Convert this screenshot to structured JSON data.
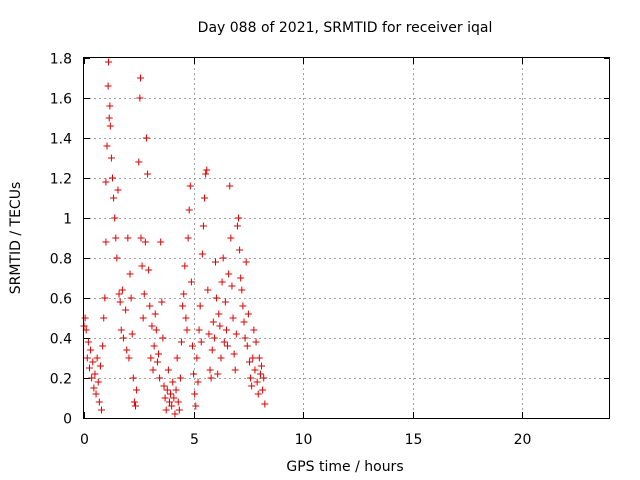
{
  "chart_data": {
    "type": "scatter",
    "title": "Day 088 of 2021, SRMTID for receiver iqal",
    "xlabel": "GPS time / hours",
    "ylabel": "SRMTID / TECUs",
    "xlim": [
      0,
      24
    ],
    "ylim": [
      0,
      1.8
    ],
    "x_ticks": [
      0,
      5,
      10,
      15,
      20
    ],
    "x_tick_labels": [
      "0",
      "5",
      "10",
      "15",
      "20"
    ],
    "y_ticks": [
      0,
      0.2,
      0.4,
      0.6,
      0.8,
      1,
      1.2,
      1.4,
      1.6,
      1.8
    ],
    "y_tick_labels": [
      "0",
      "0.2",
      "0.4",
      "0.6",
      "0.8",
      "1",
      "1.2",
      "1.4",
      "1.6",
      "1.8"
    ],
    "grid": true,
    "marker": "+",
    "series": [
      {
        "name": "SRMTID",
        "color": "#e00000",
        "points": [
          [
            0.0,
            0.46
          ],
          [
            0.05,
            0.5
          ],
          [
            0.1,
            0.44
          ],
          [
            0.15,
            0.3
          ],
          [
            0.2,
            0.38
          ],
          [
            0.25,
            0.25
          ],
          [
            0.3,
            0.34
          ],
          [
            0.35,
            0.2
          ],
          [
            0.4,
            0.28
          ],
          [
            0.45,
            0.15
          ],
          [
            0.5,
            0.22
          ],
          [
            0.55,
            0.12
          ],
          [
            0.6,
            0.3
          ],
          [
            0.65,
            0.18
          ],
          [
            0.7,
            0.08
          ],
          [
            0.75,
            0.26
          ],
          [
            0.8,
            0.04
          ],
          [
            0.85,
            0.36
          ],
          [
            0.9,
            0.5
          ],
          [
            0.95,
            0.6
          ],
          [
            1.0,
            0.88
          ],
          [
            1.0,
            1.18
          ],
          [
            1.05,
            1.36
          ],
          [
            1.1,
            1.66
          ],
          [
            1.12,
            1.78
          ],
          [
            1.15,
            1.5
          ],
          [
            1.18,
            1.56
          ],
          [
            1.2,
            1.46
          ],
          [
            1.25,
            1.3
          ],
          [
            1.3,
            1.2
          ],
          [
            1.35,
            1.1
          ],
          [
            1.4,
            1.0
          ],
          [
            1.45,
            0.9
          ],
          [
            1.5,
            0.8
          ],
          [
            1.55,
            1.14
          ],
          [
            1.6,
            0.62
          ],
          [
            1.65,
            0.58
          ],
          [
            1.7,
            0.44
          ],
          [
            1.75,
            0.64
          ],
          [
            1.8,
            0.4
          ],
          [
            1.9,
            0.54
          ],
          [
            1.95,
            0.34
          ],
          [
            2.0,
            0.9
          ],
          [
            2.05,
            0.3
          ],
          [
            2.1,
            0.72
          ],
          [
            2.15,
            0.6
          ],
          [
            2.2,
            0.42
          ],
          [
            2.25,
            0.2
          ],
          [
            2.3,
            0.08
          ],
          [
            2.35,
            0.06
          ],
          [
            2.4,
            0.14
          ],
          [
            2.5,
            1.28
          ],
          [
            2.55,
            1.6
          ],
          [
            2.58,
            1.7
          ],
          [
            2.6,
            0.9
          ],
          [
            2.65,
            0.76
          ],
          [
            2.7,
            0.5
          ],
          [
            2.75,
            0.62
          ],
          [
            2.8,
            0.88
          ],
          [
            2.85,
            1.4
          ],
          [
            2.9,
            1.22
          ],
          [
            2.95,
            0.74
          ],
          [
            3.0,
            0.56
          ],
          [
            3.05,
            0.3
          ],
          [
            3.1,
            0.46
          ],
          [
            3.15,
            0.24
          ],
          [
            3.2,
            0.36
          ],
          [
            3.25,
            0.52
          ],
          [
            3.3,
            0.44
          ],
          [
            3.35,
            0.28
          ],
          [
            3.4,
            0.32
          ],
          [
            3.45,
            0.2
          ],
          [
            3.5,
            0.88
          ],
          [
            3.55,
            0.58
          ],
          [
            3.6,
            0.4
          ],
          [
            3.65,
            0.16
          ],
          [
            3.7,
            0.1
          ],
          [
            3.75,
            0.04
          ],
          [
            3.8,
            0.14
          ],
          [
            3.85,
            0.24
          ],
          [
            3.9,
            0.08
          ],
          [
            3.95,
            0.12
          ],
          [
            4.0,
            0.06
          ],
          [
            4.05,
            0.18
          ],
          [
            4.1,
            0.1
          ],
          [
            4.15,
            0.02
          ],
          [
            4.2,
            0.14
          ],
          [
            4.25,
            0.3
          ],
          [
            4.3,
            0.08
          ],
          [
            4.35,
            0.04
          ],
          [
            4.4,
            0.2
          ],
          [
            4.45,
            0.38
          ],
          [
            4.5,
            0.56
          ],
          [
            4.55,
            0.62
          ],
          [
            4.6,
            0.76
          ],
          [
            4.65,
            0.5
          ],
          [
            4.7,
            0.44
          ],
          [
            4.75,
            0.9
          ],
          [
            4.8,
            1.04
          ],
          [
            4.85,
            1.16
          ],
          [
            4.9,
            0.68
          ],
          [
            4.95,
            0.36
          ],
          [
            5.0,
            0.22
          ],
          [
            5.05,
            0.12
          ],
          [
            5.1,
            0.06
          ],
          [
            5.15,
            0.3
          ],
          [
            5.2,
            0.18
          ],
          [
            5.25,
            0.44
          ],
          [
            5.3,
            0.56
          ],
          [
            5.35,
            0.38
          ],
          [
            5.4,
            0.82
          ],
          [
            5.45,
            0.96
          ],
          [
            5.5,
            1.1
          ],
          [
            5.55,
            1.22
          ],
          [
            5.6,
            1.24
          ],
          [
            5.65,
            0.64
          ],
          [
            5.7,
            0.42
          ],
          [
            5.75,
            0.24
          ],
          [
            5.8,
            0.2
          ],
          [
            5.85,
            0.34
          ],
          [
            5.9,
            0.48
          ],
          [
            5.95,
            0.4
          ],
          [
            6.0,
            0.78
          ],
          [
            6.05,
            0.6
          ],
          [
            6.1,
            0.22
          ],
          [
            6.15,
            0.52
          ],
          [
            6.2,
            0.46
          ],
          [
            6.25,
            0.3
          ],
          [
            6.3,
            0.68
          ],
          [
            6.35,
            0.8
          ],
          [
            6.4,
            0.38
          ],
          [
            6.45,
            0.58
          ],
          [
            6.5,
            0.44
          ],
          [
            6.55,
            0.36
          ],
          [
            6.6,
            0.72
          ],
          [
            6.65,
            1.16
          ],
          [
            6.7,
            0.9
          ],
          [
            6.75,
            0.66
          ],
          [
            6.8,
            0.5
          ],
          [
            6.85,
            0.32
          ],
          [
            6.9,
            0.24
          ],
          [
            6.95,
            0.42
          ],
          [
            7.0,
            0.96
          ],
          [
            7.05,
            1.0
          ],
          [
            7.1,
            0.84
          ],
          [
            7.15,
            0.7
          ],
          [
            7.2,
            0.64
          ],
          [
            7.25,
            0.56
          ],
          [
            7.3,
            0.48
          ],
          [
            7.35,
            0.4
          ],
          [
            7.4,
            0.78
          ],
          [
            7.45,
            0.36
          ],
          [
            7.5,
            0.52
          ],
          [
            7.55,
            0.28
          ],
          [
            7.6,
            0.2
          ],
          [
            7.65,
            0.16
          ],
          [
            7.7,
            0.3
          ],
          [
            7.75,
            0.44
          ],
          [
            7.8,
            0.24
          ],
          [
            7.85,
            0.38
          ],
          [
            7.9,
            0.18
          ],
          [
            7.95,
            0.12
          ],
          [
            8.0,
            0.3
          ],
          [
            8.05,
            0.22
          ],
          [
            8.1,
            0.26
          ],
          [
            8.15,
            0.14
          ],
          [
            8.2,
            0.2
          ],
          [
            8.25,
            0.07
          ]
        ]
      }
    ]
  }
}
